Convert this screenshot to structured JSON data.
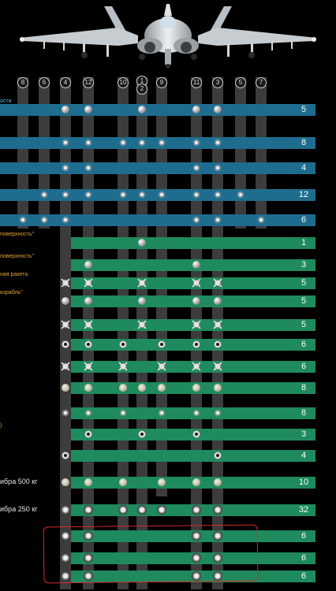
{
  "pylons": [
    {
      "id": "p8",
      "label": "8"
    },
    {
      "id": "p6",
      "label": "6"
    },
    {
      "id": "p4",
      "label": "4"
    },
    {
      "id": "p12",
      "label": "12"
    },
    {
      "id": "p10",
      "label": "10"
    },
    {
      "id": "p1",
      "label": "1"
    },
    {
      "id": "p2",
      "label": "2"
    },
    {
      "id": "p9",
      "label": "9"
    },
    {
      "id": "p11",
      "label": "11"
    },
    {
      "id": "p3",
      "label": "3"
    },
    {
      "id": "p5",
      "label": "5"
    },
    {
      "id": "p7",
      "label": "7"
    }
  ],
  "rows": [
    {
      "count": "5",
      "color": "#1e6d8f",
      "label": "ости",
      "label_class": "blue"
    },
    {
      "count": "8",
      "color": "#1e6d8f",
      "label": "",
      "label_class": "blue"
    },
    {
      "count": "4",
      "color": "#1e6d8f",
      "label": "",
      "label_class": "blue"
    },
    {
      "count": "12",
      "color": "#1e6d8f",
      "label": "",
      "label_class": "blue"
    },
    {
      "count": "6",
      "color": "#1e6d8f",
      "label": "",
      "label_class": "blue"
    },
    {
      "count": "1",
      "color": "#1f8a5d",
      "label": "поверхность\"",
      "label_class": "orange"
    },
    {
      "count": "3",
      "color": "#1f8a5d",
      "label": "поверхность\"",
      "label_class": "orange"
    },
    {
      "count": "5",
      "color": "#1f8a5d",
      "label": "ная ракета",
      "label_class": "orange"
    },
    {
      "count": "5",
      "color": "#1f8a5d",
      "label": "корабль\"",
      "label_class": "orange"
    },
    {
      "count": "5",
      "color": "#1f8a5d",
      "label": "",
      "label_class": "orange"
    },
    {
      "count": "6",
      "color": "#1f8a5d",
      "label": "",
      "label_class": "orange"
    },
    {
      "count": "6",
      "color": "#1f8a5d",
      "label": "",
      "label_class": "orange"
    },
    {
      "count": "8",
      "color": "#1f8a5d",
      "label": "",
      "label_class": "orange"
    },
    {
      "count": "8",
      "color": "#1f8a5d",
      "label": "",
      "label_class": "orange"
    },
    {
      "count": "3",
      "color": "#1f8a5d",
      "label": ")",
      "label_class": "orange"
    },
    {
      "count": "4",
      "color": "#1f8a5d",
      "label": "",
      "label_class": "orange"
    },
    {
      "count": "10",
      "color": "#1f8a5d",
      "label": "ибра 500 кг",
      "label_class": "white"
    },
    {
      "count": "32",
      "color": "#1f8a5d",
      "label": "ибра 250 кг",
      "label_class": "white"
    },
    {
      "count": "6",
      "color": "#1f8a5d",
      "label": "",
      "label_class": "white"
    },
    {
      "count": "6",
      "color": "#1f8a5d",
      "label": "",
      "label_class": "white"
    },
    {
      "count": "6",
      "color": "#1f8a5d",
      "label": "",
      "label_class": "white"
    }
  ],
  "icons": {
    "aircraft": "su-27-aircraft-icon"
  }
}
